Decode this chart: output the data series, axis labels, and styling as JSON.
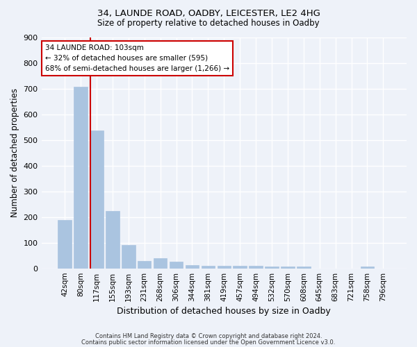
{
  "title1": "34, LAUNDE ROAD, OADBY, LEICESTER, LE2 4HG",
  "title2": "Size of property relative to detached houses in Oadby",
  "xlabel": "Distribution of detached houses by size in Oadby",
  "ylabel": "Number of detached properties",
  "categories": [
    "42sqm",
    "80sqm",
    "117sqm",
    "155sqm",
    "193sqm",
    "231sqm",
    "268sqm",
    "306sqm",
    "344sqm",
    "381sqm",
    "419sqm",
    "457sqm",
    "494sqm",
    "532sqm",
    "570sqm",
    "608sqm",
    "645sqm",
    "683sqm",
    "721sqm",
    "758sqm",
    "796sqm"
  ],
  "values": [
    188,
    707,
    537,
    224,
    91,
    28,
    40,
    25,
    12,
    11,
    11,
    10,
    10,
    8,
    7,
    6,
    0,
    0,
    0,
    8,
    0
  ],
  "bar_color": "#aac4e0",
  "bar_edge_color": "#aac4e0",
  "bg_color": "#eef2f9",
  "grid_color": "#ffffff",
  "annotation_line1": "34 LAUNDE ROAD: 103sqm",
  "annotation_line2": "← 32% of detached houses are smaller (595)",
  "annotation_line3": "68% of semi-detached houses are larger (1,266) →",
  "red_line_color": "#cc0000",
  "annotation_box_color": "#ffffff",
  "annotation_box_edge": "#cc0000",
  "footer1": "Contains HM Land Registry data © Crown copyright and database right 2024.",
  "footer2": "Contains public sector information licensed under the Open Government Licence v3.0.",
  "ylim": [
    0,
    900
  ],
  "yticks": [
    0,
    100,
    200,
    300,
    400,
    500,
    600,
    700,
    800,
    900
  ]
}
